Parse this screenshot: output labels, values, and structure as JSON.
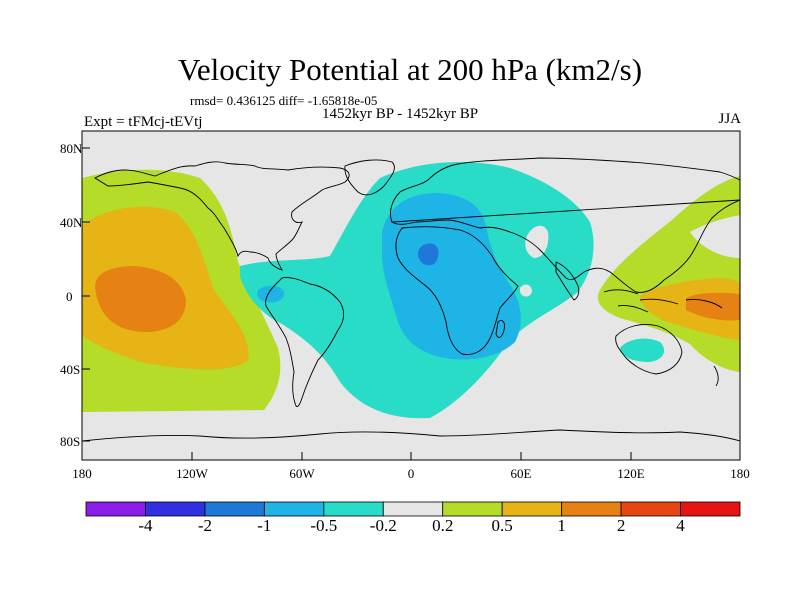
{
  "title": "Velocity Potential at 200 hPa (km2/s)",
  "stats_line": "rmsd= 0.436125 diff= -1.65818e-05",
  "subtitle": "1452kyr BP - 1452kyr BP",
  "experiment": "Expt = tFMcj-tEVtj",
  "season": "JJA",
  "axes": {
    "lat_ticks": [
      "80N",
      "40N",
      "0",
      "40S",
      "80S"
    ],
    "lon_ticks": [
      "180",
      "120W",
      "60W",
      "0",
      "60E",
      "120E",
      "180"
    ]
  },
  "colorbar": {
    "colors": [
      "#8b1ee6",
      "#3030e0",
      "#1f78d8",
      "#1eb4e6",
      "#28dcc8",
      "#e6e6e6",
      "#b4dc28",
      "#e6b414",
      "#e68214",
      "#e64614",
      "#e61414"
    ],
    "labels": [
      "-4",
      "-2",
      "-1",
      "-0.5",
      "-0.2",
      "0.2",
      "0.5",
      "1",
      "2",
      "4"
    ]
  },
  "legend_colors": {
    "background": "#e6e6e6",
    "neg_0_2": "#28dcc8",
    "neg_0_5": "#1eb4e6",
    "neg_1": "#1f78d8",
    "pos_0_2": "#b4dc28",
    "pos_0_5": "#e6b414",
    "pos_1": "#e68214"
  }
}
